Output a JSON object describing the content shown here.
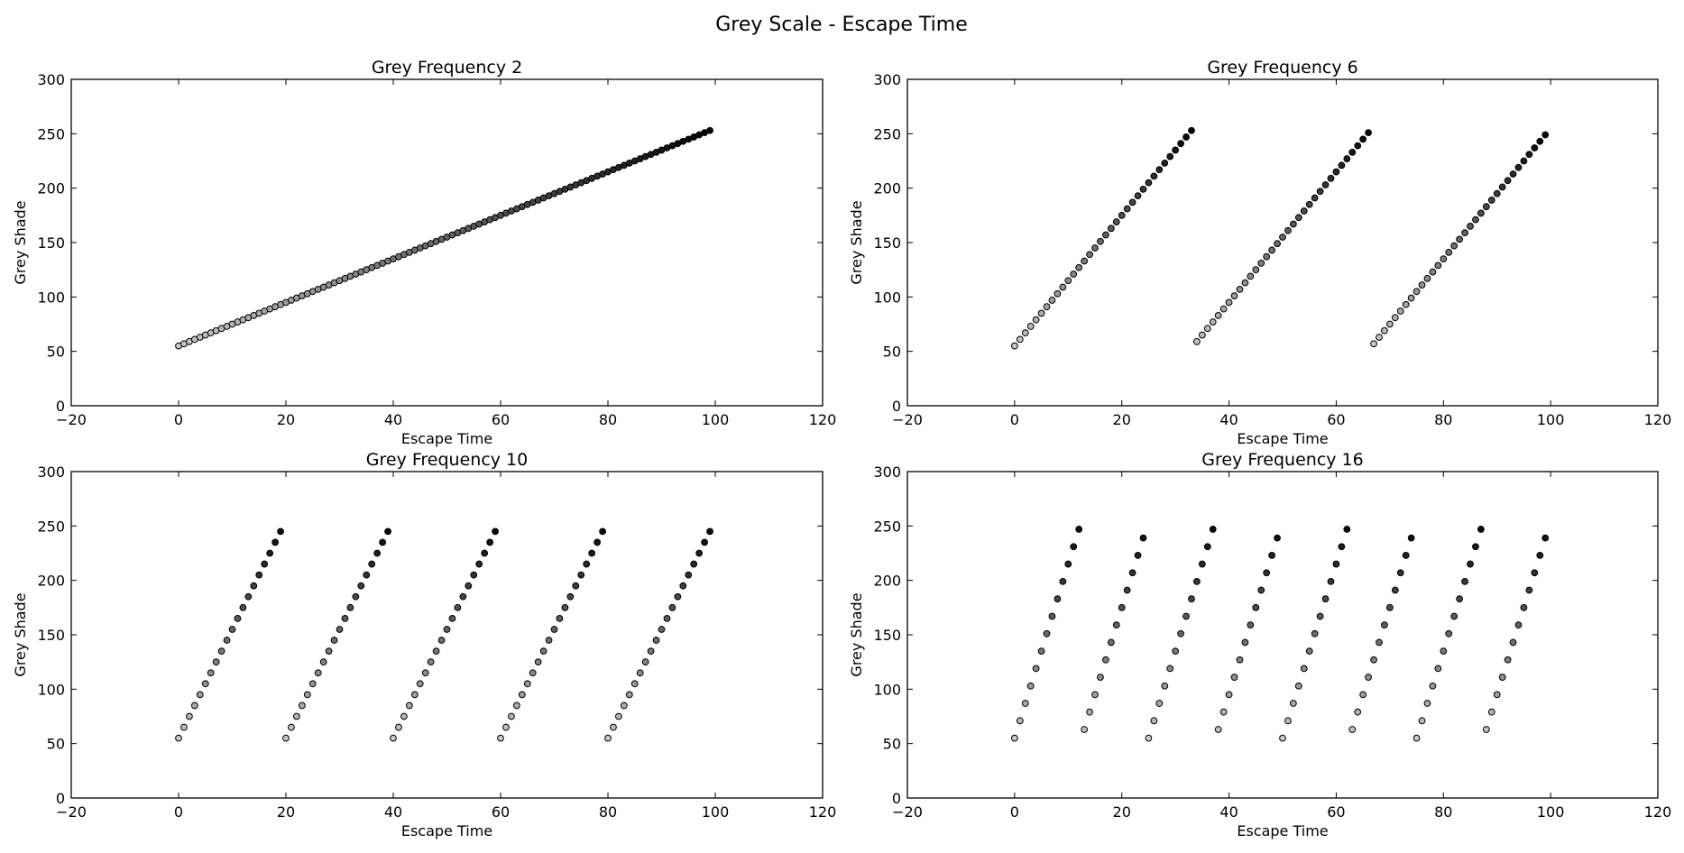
{
  "figure": {
    "title": "Grey Scale - Escape Time"
  },
  "chart_data": [
    {
      "type": "scatter",
      "title": "Grey Frequency 2",
      "xlabel": "Escape Time",
      "ylabel": "Grey Shade",
      "xlim": [
        -20,
        120
      ],
      "ylim": [
        0,
        300
      ],
      "xticks": [
        -20,
        0,
        20,
        40,
        60,
        80,
        100,
        120
      ],
      "yticks": [
        0,
        50,
        100,
        150,
        200,
        250,
        300
      ],
      "grid": false,
      "marker": "circle",
      "edge_color": "#000000",
      "fill": "grey level equal to y value (255 = black, 55 = near white)",
      "frequency": 2,
      "x": [
        0,
        1,
        2,
        3,
        4,
        5,
        6,
        7,
        8,
        9,
        10,
        11,
        12,
        13,
        14,
        15,
        16,
        17,
        18,
        19,
        20,
        21,
        22,
        23,
        24,
        25,
        26,
        27,
        28,
        29,
        30,
        31,
        32,
        33,
        34,
        35,
        36,
        37,
        38,
        39,
        40,
        41,
        42,
        43,
        44,
        45,
        46,
        47,
        48,
        49,
        50,
        51,
        52,
        53,
        54,
        55,
        56,
        57,
        58,
        59,
        60,
        61,
        62,
        63,
        64,
        65,
        66,
        67,
        68,
        69,
        70,
        71,
        72,
        73,
        74,
        75,
        76,
        77,
        78,
        79,
        80,
        81,
        82,
        83,
        84,
        85,
        86,
        87,
        88,
        89,
        90,
        91,
        92,
        93,
        94,
        95,
        96,
        97,
        98,
        99
      ],
      "y": [
        55,
        57,
        59,
        61,
        63,
        65,
        67,
        69,
        71,
        73,
        75,
        77,
        79,
        81,
        83,
        85,
        87,
        89,
        91,
        93,
        95,
        97,
        99,
        101,
        103,
        105,
        107,
        109,
        111,
        113,
        115,
        117,
        119,
        121,
        123,
        125,
        127,
        129,
        131,
        133,
        135,
        137,
        139,
        141,
        143,
        145,
        147,
        149,
        151,
        153,
        155,
        157,
        159,
        161,
        163,
        165,
        167,
        169,
        171,
        173,
        175,
        177,
        179,
        181,
        183,
        185,
        187,
        189,
        191,
        193,
        195,
        197,
        199,
        201,
        203,
        205,
        207,
        209,
        211,
        213,
        215,
        217,
        219,
        221,
        223,
        225,
        227,
        229,
        231,
        233,
        235,
        237,
        239,
        241,
        243,
        245,
        247,
        249,
        251,
        253
      ]
    },
    {
      "type": "scatter",
      "title": "Grey Frequency 6",
      "xlabel": "Escape Time",
      "ylabel": "Grey Shade",
      "xlim": [
        -20,
        120
      ],
      "ylim": [
        0,
        300
      ],
      "xticks": [
        -20,
        0,
        20,
        40,
        60,
        80,
        100,
        120
      ],
      "yticks": [
        0,
        50,
        100,
        150,
        200,
        250,
        300
      ],
      "grid": false,
      "marker": "circle",
      "edge_color": "#000000",
      "fill": "grey level equal to y value (255 = black, 55 = near white)",
      "frequency": 6,
      "x": [
        0,
        1,
        2,
        3,
        4,
        5,
        6,
        7,
        8,
        9,
        10,
        11,
        12,
        13,
        14,
        15,
        16,
        17,
        18,
        19,
        20,
        21,
        22,
        23,
        24,
        25,
        26,
        27,
        28,
        29,
        30,
        31,
        32,
        33,
        34,
        35,
        36,
        37,
        38,
        39,
        40,
        41,
        42,
        43,
        44,
        45,
        46,
        47,
        48,
        49,
        50,
        51,
        52,
        53,
        54,
        55,
        56,
        57,
        58,
        59,
        60,
        61,
        62,
        63,
        64,
        65,
        66,
        67,
        68,
        69,
        70,
        71,
        72,
        73,
        74,
        75,
        76,
        77,
        78,
        79,
        80,
        81,
        82,
        83,
        84,
        85,
        86,
        87,
        88,
        89,
        90,
        91,
        92,
        93,
        94,
        95,
        96,
        97,
        98,
        99
      ],
      "y": [
        55,
        61,
        67,
        73,
        79,
        85,
        91,
        97,
        103,
        109,
        115,
        121,
        127,
        133,
        139,
        145,
        151,
        157,
        163,
        169,
        175,
        181,
        187,
        193,
        199,
        205,
        211,
        217,
        223,
        229,
        235,
        241,
        247,
        253,
        59,
        65,
        71,
        77,
        83,
        89,
        95,
        101,
        107,
        113,
        119,
        125,
        131,
        137,
        143,
        149,
        155,
        161,
        167,
        173,
        179,
        185,
        191,
        197,
        203,
        209,
        215,
        221,
        227,
        233,
        239,
        245,
        251,
        57,
        63,
        69,
        75,
        81,
        87,
        93,
        99,
        105,
        111,
        117,
        123,
        129,
        135,
        141,
        147,
        153,
        159,
        165,
        171,
        177,
        183,
        189,
        195,
        201,
        207,
        213,
        219,
        225,
        231,
        237,
        243,
        249
      ]
    },
    {
      "type": "scatter",
      "title": "Grey Frequency 10",
      "xlabel": "Escape Time",
      "ylabel": "Grey Shade",
      "xlim": [
        -20,
        120
      ],
      "ylim": [
        0,
        300
      ],
      "xticks": [
        -20,
        0,
        20,
        40,
        60,
        80,
        100,
        120
      ],
      "yticks": [
        0,
        50,
        100,
        150,
        200,
        250,
        300
      ],
      "grid": false,
      "marker": "circle",
      "edge_color": "#000000",
      "fill": "grey level equal to y value (255 = black, 55 = near white)",
      "frequency": 10,
      "x": [
        0,
        1,
        2,
        3,
        4,
        5,
        6,
        7,
        8,
        9,
        10,
        11,
        12,
        13,
        14,
        15,
        16,
        17,
        18,
        19,
        20,
        21,
        22,
        23,
        24,
        25,
        26,
        27,
        28,
        29,
        30,
        31,
        32,
        33,
        34,
        35,
        36,
        37,
        38,
        39,
        40,
        41,
        42,
        43,
        44,
        45,
        46,
        47,
        48,
        49,
        50,
        51,
        52,
        53,
        54,
        55,
        56,
        57,
        58,
        59,
        60,
        61,
        62,
        63,
        64,
        65,
        66,
        67,
        68,
        69,
        70,
        71,
        72,
        73,
        74,
        75,
        76,
        77,
        78,
        79,
        80,
        81,
        82,
        83,
        84,
        85,
        86,
        87,
        88,
        89,
        90,
        91,
        92,
        93,
        94,
        95,
        96,
        97,
        98,
        99
      ],
      "y": [
        55,
        65,
        75,
        85,
        95,
        105,
        115,
        125,
        135,
        145,
        155,
        165,
        175,
        185,
        195,
        205,
        215,
        225,
        235,
        245,
        55,
        65,
        75,
        85,
        95,
        105,
        115,
        125,
        135,
        145,
        155,
        165,
        175,
        185,
        195,
        205,
        215,
        225,
        235,
        245,
        55,
        65,
        75,
        85,
        95,
        105,
        115,
        125,
        135,
        145,
        155,
        165,
        175,
        185,
        195,
        205,
        215,
        225,
        235,
        245,
        55,
        65,
        75,
        85,
        95,
        105,
        115,
        125,
        135,
        145,
        155,
        165,
        175,
        185,
        195,
        205,
        215,
        225,
        235,
        245,
        55,
        65,
        75,
        85,
        95,
        105,
        115,
        125,
        135,
        145,
        155,
        165,
        175,
        185,
        195,
        205,
        215,
        225,
        235,
        245
      ]
    },
    {
      "type": "scatter",
      "title": "Grey Frequency 16",
      "xlabel": "Escape Time",
      "ylabel": "Grey Shade",
      "xlim": [
        -20,
        120
      ],
      "ylim": [
        0,
        300
      ],
      "xticks": [
        -20,
        0,
        20,
        40,
        60,
        80,
        100,
        120
      ],
      "yticks": [
        0,
        50,
        100,
        150,
        200,
        250,
        300
      ],
      "grid": false,
      "marker": "circle",
      "edge_color": "#000000",
      "fill": "grey level equal to y value (255 = black, 55 = near white)",
      "frequency": 16,
      "x": [
        0,
        1,
        2,
        3,
        4,
        5,
        6,
        7,
        8,
        9,
        10,
        11,
        12,
        13,
        14,
        15,
        16,
        17,
        18,
        19,
        20,
        21,
        22,
        23,
        24,
        25,
        26,
        27,
        28,
        29,
        30,
        31,
        32,
        33,
        34,
        35,
        36,
        37,
        38,
        39,
        40,
        41,
        42,
        43,
        44,
        45,
        46,
        47,
        48,
        49,
        50,
        51,
        52,
        53,
        54,
        55,
        56,
        57,
        58,
        59,
        60,
        61,
        62,
        63,
        64,
        65,
        66,
        67,
        68,
        69,
        70,
        71,
        72,
        73,
        74,
        75,
        76,
        77,
        78,
        79,
        80,
        81,
        82,
        83,
        84,
        85,
        86,
        87,
        88,
        89,
        90,
        91,
        92,
        93,
        94,
        95,
        96,
        97,
        98,
        99
      ],
      "y": [
        55,
        71,
        87,
        103,
        119,
        135,
        151,
        167,
        183,
        199,
        215,
        231,
        247,
        63,
        79,
        95,
        111,
        127,
        143,
        159,
        175,
        191,
        207,
        223,
        239,
        55,
        71,
        87,
        103,
        119,
        135,
        151,
        167,
        183,
        199,
        215,
        231,
        247,
        63,
        79,
        95,
        111,
        127,
        143,
        159,
        175,
        191,
        207,
        223,
        239,
        55,
        71,
        87,
        103,
        119,
        135,
        151,
        167,
        183,
        199,
        215,
        231,
        247,
        63,
        79,
        95,
        111,
        127,
        143,
        159,
        175,
        191,
        207,
        223,
        239,
        55,
        71,
        87,
        103,
        119,
        135,
        151,
        167,
        183,
        199,
        215,
        231,
        247,
        63,
        79,
        95,
        111,
        127,
        143,
        159,
        175,
        191,
        207,
        223,
        239
      ]
    }
  ]
}
